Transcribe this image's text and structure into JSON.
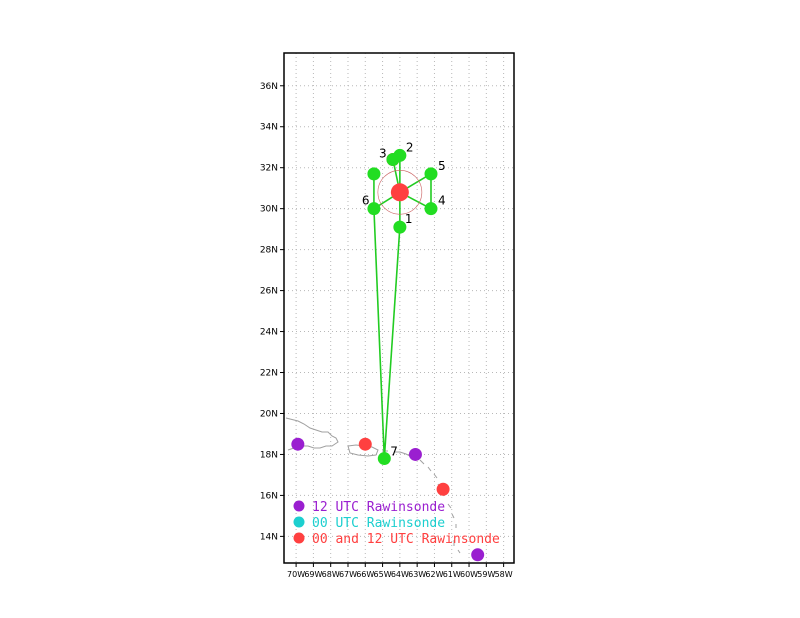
{
  "map": {
    "lat_ticks": [
      "36N",
      "34N",
      "32N",
      "30N",
      "28N",
      "26N",
      "24N",
      "22N",
      "20N",
      "18N",
      "16N",
      "14N"
    ],
    "lon_ticks": [
      "70W",
      "69W",
      "68W",
      "67W",
      "66W",
      "65W",
      "64W",
      "63W",
      "62W",
      "61W",
      "60W",
      "59W",
      "58W"
    ],
    "lat_range": [
      12.7,
      37.6
    ],
    "lon_range": [
      -70.7,
      -57.4
    ],
    "grid": true,
    "gridlines_style": "dotted gray"
  },
  "center": {
    "lat": 30.8,
    "lon": -64.0,
    "color": "#ff4040"
  },
  "track_points": [
    {
      "label": "1",
      "lat": 29.1,
      "lon": -64.0
    },
    {
      "label": "2",
      "lat": 32.6,
      "lon": -64.0
    },
    {
      "label": "3",
      "lat": 32.4,
      "lon": -64.4
    },
    {
      "label": "4",
      "lat": 30.0,
      "lon": -62.2
    },
    {
      "label": "5",
      "lat": 31.7,
      "lon": -62.2
    },
    {
      "label": "6",
      "lat": 30.0,
      "lon": -65.5
    },
    {
      "label": "7",
      "lat": 17.8,
      "lon": -64.9
    }
  ],
  "track_segments": [
    [
      "center",
      "1"
    ],
    [
      "center",
      "2"
    ],
    [
      "center",
      "3"
    ],
    [
      "center",
      "4"
    ],
    [
      "center",
      "5"
    ],
    [
      "center",
      "6"
    ],
    [
      "1",
      "7"
    ],
    [
      "6",
      "7"
    ],
    [
      "4",
      "5"
    ],
    [
      "6",
      "6b"
    ]
  ],
  "extra_points": [
    {
      "id": "6b",
      "lat": 31.7,
      "lon": -65.5
    }
  ],
  "stations": [
    {
      "type": "12",
      "lat": 18.5,
      "lon": -69.9
    },
    {
      "type": "both",
      "lat": 18.5,
      "lon": -66.0
    },
    {
      "type": "12",
      "lat": 18.0,
      "lon": -63.1
    },
    {
      "type": "both",
      "lat": 16.3,
      "lon": -61.5
    },
    {
      "type": "12",
      "lat": 13.1,
      "lon": -59.5
    },
    {
      "type": "both",
      "lat": 32.4,
      "lon": -64.4
    }
  ],
  "legend": [
    {
      "key": "12",
      "label": "12 UTC Rawinsonde",
      "color": "#9a1fd0"
    },
    {
      "key": "00",
      "label": "00 UTC Rawinsonde",
      "color": "#1ccfcf"
    },
    {
      "key": "both",
      "label": "00 and 12 UTC Rawinsonde",
      "color": "#ff4040"
    }
  ],
  "colors": {
    "track": "#22cc22",
    "point": "#22dd22",
    "coast": "#a0a0a0",
    "grid": "#b8b8b8",
    "frame": "#000000"
  }
}
